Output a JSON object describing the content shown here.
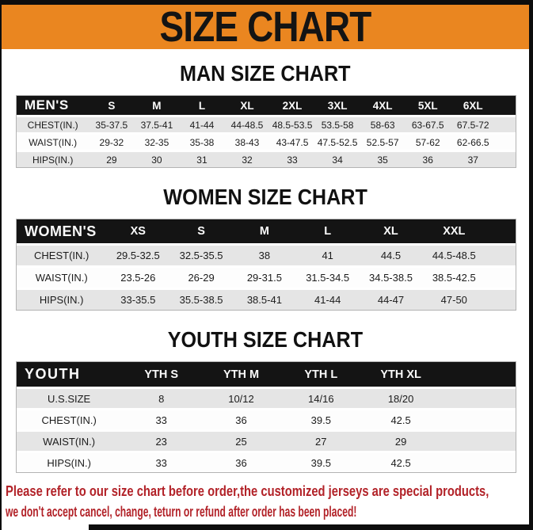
{
  "title": "SIZE CHART",
  "theme": {
    "banner_orange": "#EA8620",
    "table_header_black": "#141414",
    "row_stripe_gray": "#E5E5E5",
    "warning_red": "#B22228"
  },
  "sections": [
    {
      "heading": "MAN SIZE CHART",
      "table": {
        "label": "MEN'S",
        "columns": [
          "S",
          "M",
          "L",
          "XL",
          "2XL",
          "3XL",
          "4XL",
          "5XL",
          "6XL"
        ],
        "rows": [
          {
            "label": "CHEST(IN.)",
            "values": [
              "35-37.5",
              "37.5-41",
              "41-44",
              "44-48.5",
              "48.5-53.5",
              "53.5-58",
              "58-63",
              "63-67.5",
              "67.5-72"
            ]
          },
          {
            "label": "WAIST(IN.)",
            "values": [
              "29-32",
              "32-35",
              "35-38",
              "38-43",
              "43-47.5",
              "47.5-52.5",
              "52.5-57",
              "57-62",
              "62-66.5"
            ]
          },
          {
            "label": "HIPS(IN.)",
            "values": [
              "29",
              "30",
              "31",
              "32",
              "33",
              "34",
              "35",
              "36",
              "37"
            ]
          }
        ]
      }
    },
    {
      "heading": "WOMEN SIZE CHART",
      "table": {
        "label": "WOMEN'S",
        "columns": [
          "XS",
          "S",
          "M",
          "L",
          "XL",
          "XXL"
        ],
        "rows": [
          {
            "label": "CHEST(IN.)",
            "values": [
              "29.5-32.5",
              "32.5-35.5",
              "38",
              "41",
              "44.5",
              "44.5-48.5"
            ]
          },
          {
            "label": "WAIST(IN.)",
            "values": [
              "23.5-26",
              "26-29",
              "29-31.5",
              "31.5-34.5",
              "34.5-38.5",
              "38.5-42.5"
            ]
          },
          {
            "label": "HIPS(IN.)",
            "values": [
              "33-35.5",
              "35.5-38.5",
              "38.5-41",
              "41-44",
              "44-47",
              "47-50"
            ]
          }
        ]
      }
    },
    {
      "heading": "YOUTH SIZE CHART",
      "table": {
        "label": "YOUTH",
        "columns": [
          "YTH S",
          "YTH M",
          "YTH L",
          "YTH XL"
        ],
        "rows": [
          {
            "label": "U.S.SIZE",
            "values": [
              "8",
              "10/12",
              "14/16",
              "18/20"
            ]
          },
          {
            "label": "CHEST(IN.)",
            "values": [
              "33",
              "36",
              "39.5",
              "42.5"
            ]
          },
          {
            "label": "WAIST(IN.)",
            "values": [
              "23",
              "25",
              "27",
              "29"
            ]
          },
          {
            "label": "HIPS(IN.)",
            "values": [
              "33",
              "36",
              "39.5",
              "42.5"
            ]
          }
        ]
      }
    }
  ],
  "footer": {
    "line1": "Please refer to our size chart before order,the customized jerseys are special products,",
    "line2": "we don't accept cancel, change, teturn or refund after order has been placed!"
  }
}
